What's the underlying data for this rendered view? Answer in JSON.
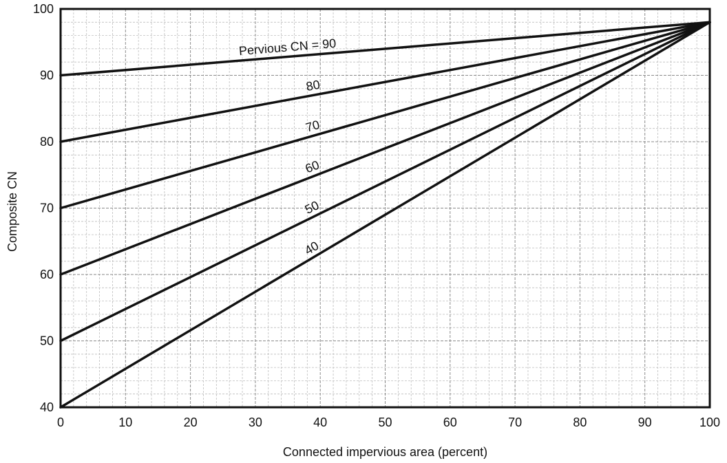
{
  "chart_data": {
    "type": "line",
    "title": "",
    "xlabel": "Connected impervious area (percent)",
    "ylabel": "Composite CN",
    "xlim": [
      0,
      100
    ],
    "ylim": [
      40,
      100
    ],
    "x_ticks": [
      0,
      10,
      20,
      30,
      40,
      50,
      60,
      70,
      80,
      90,
      100
    ],
    "y_ticks": [
      40,
      50,
      60,
      70,
      80,
      90,
      100
    ],
    "grid": true,
    "impervious_cn": 98,
    "series": [
      {
        "name": "Pervious CN = 90",
        "label": "Pervious CN = 90",
        "x": [
          0,
          100
        ],
        "y": [
          90,
          98
        ]
      },
      {
        "name": "80",
        "label": "80",
        "x": [
          0,
          100
        ],
        "y": [
          80,
          98
        ]
      },
      {
        "name": "70",
        "label": "70",
        "x": [
          0,
          100
        ],
        "y": [
          70,
          98
        ]
      },
      {
        "name": "60",
        "label": "60",
        "x": [
          0,
          100
        ],
        "y": [
          60,
          98
        ]
      },
      {
        "name": "50",
        "label": "50",
        "x": [
          0,
          100
        ],
        "y": [
          50,
          98
        ]
      },
      {
        "name": "40",
        "label": "40",
        "x": [
          0,
          100
        ],
        "y": [
          40,
          98
        ]
      }
    ],
    "colors": {
      "line": "#111111",
      "grid": "#bdbdbd",
      "frame": "#111111"
    }
  }
}
